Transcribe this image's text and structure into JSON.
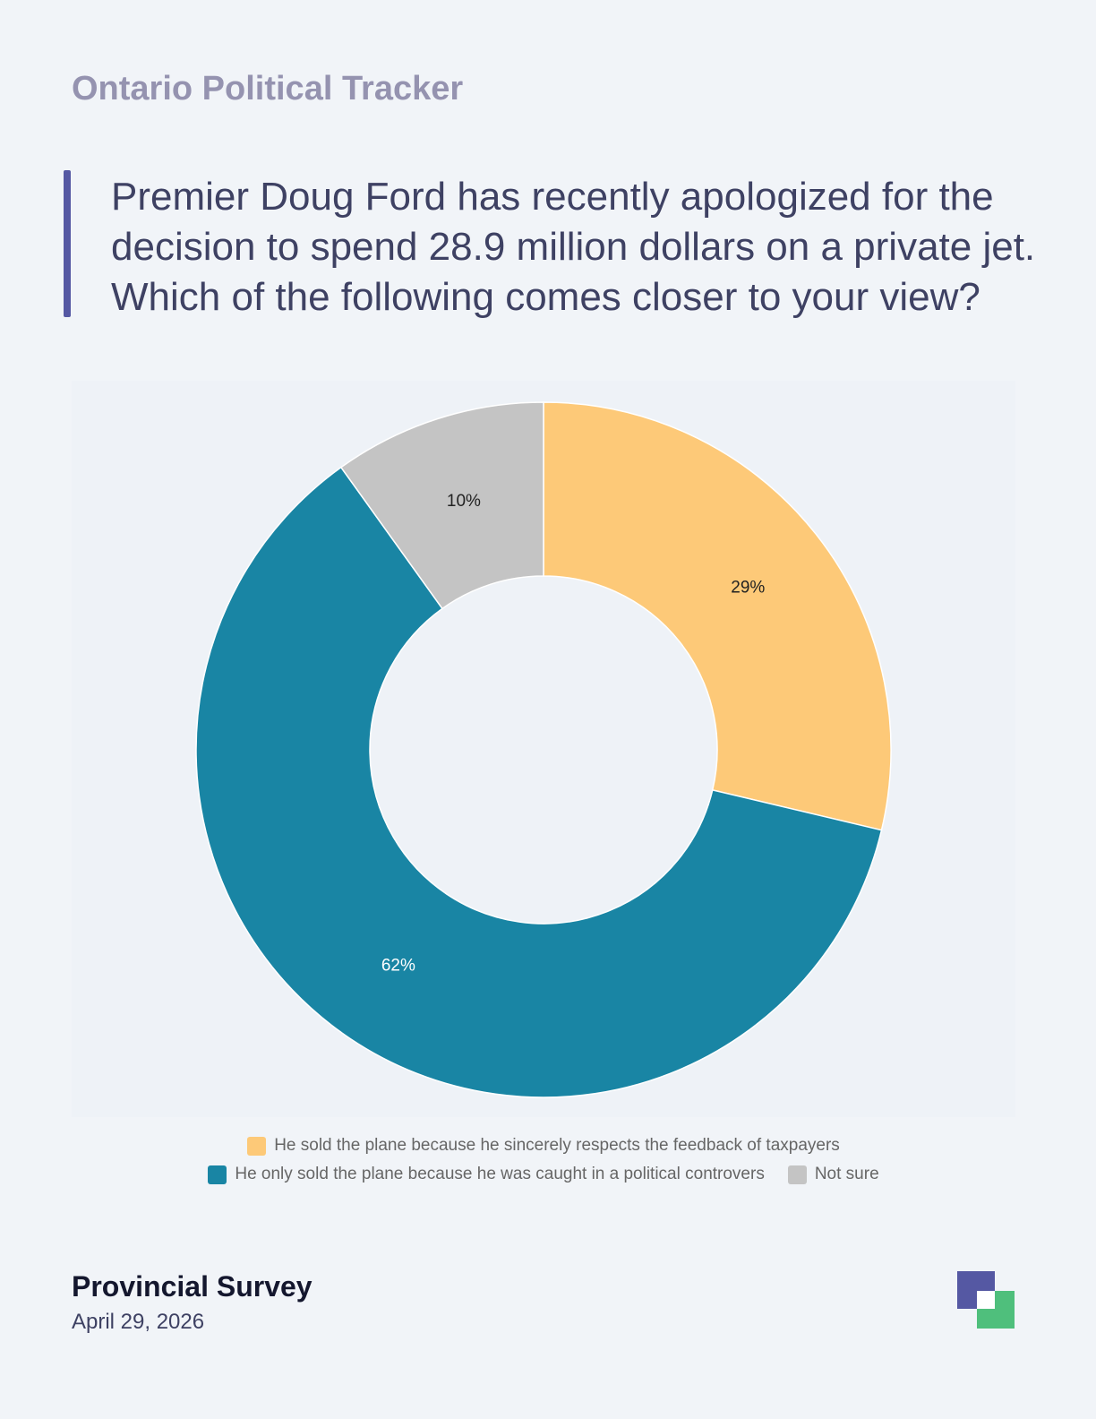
{
  "header": {
    "tracker_title": "Ontario Political Tracker",
    "question": "Premier Doug Ford has recently apologized for the decision to spend 28.9 million dollars on a private jet. Which of the following comes closer to your view?"
  },
  "chart_data": {
    "type": "pie",
    "donut": true,
    "legend_position": "bottom",
    "series": [
      {
        "name": "He sold the plane because he sincerely respects the feedback of taxpayers",
        "value": 29,
        "label": "29%",
        "color": "#fdc978",
        "label_color": "#222222"
      },
      {
        "name": "He only sold the plane because he was caught in a political controvers",
        "value": 62,
        "label": "62%",
        "color": "#1985a4",
        "label_color": "#ffffff"
      },
      {
        "name": "Not sure",
        "value": 10,
        "label": "10%",
        "color": "#c4c4c4",
        "label_color": "#222222"
      }
    ]
  },
  "footer": {
    "survey_name": "Provincial Survey",
    "date": "April 29, 2026"
  },
  "colors": {
    "accent": "#5558a3",
    "logo_purple": "#5558a3",
    "logo_green": "#4fbf7c"
  }
}
